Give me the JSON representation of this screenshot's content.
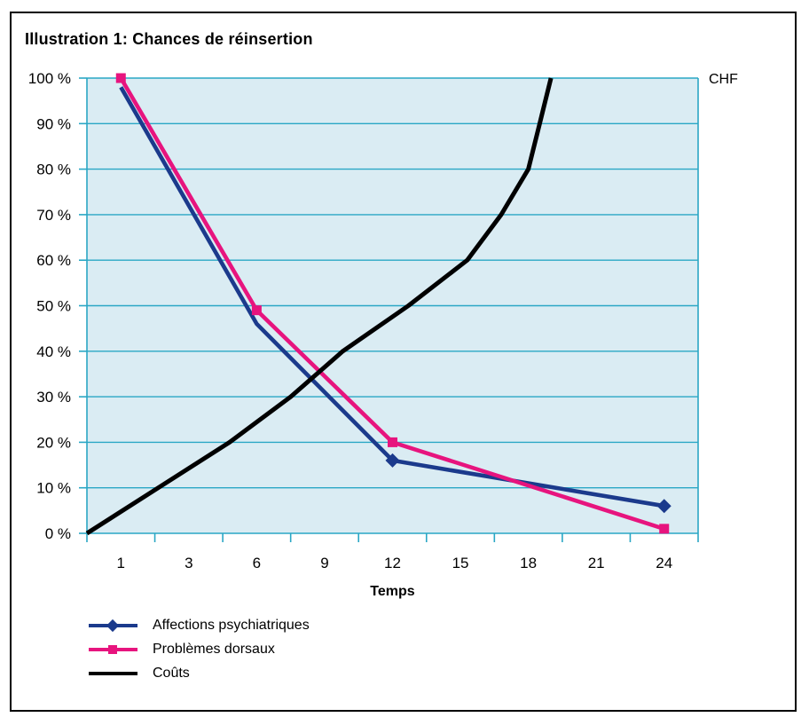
{
  "page": {
    "title": "Illustration 1: Chances de réinsertion"
  },
  "chart_data": {
    "type": "line",
    "title": "Illustration 1: Chances de réinsertion",
    "plot_background": "#DAECF3",
    "grid_color": "#2AA7C5",
    "grid": "horizontal-only",
    "x_axis": {
      "label": "Temps",
      "unit": "months",
      "categories": [
        "1",
        "3",
        "6",
        "9",
        "12",
        "15",
        "18",
        "21",
        "24"
      ]
    },
    "y_axis": {
      "range": [
        0,
        100
      ],
      "tick_step": 10,
      "tick_labels": [
        "0 %",
        "10 %",
        "20 %",
        "30 %",
        "40 %",
        "50 %",
        "60 %",
        "70 %",
        "80 %",
        "90 %",
        "100 %"
      ]
    },
    "right_axis_label": "CHF",
    "legend": {
      "position": "bottom-left"
    },
    "series": [
      {
        "name": "Affections psychiatriques",
        "color": "#1B3A8C",
        "marker": "diamond",
        "markers_at_months": [
          12,
          24
        ],
        "points": [
          {
            "month": 1,
            "pct": 98
          },
          {
            "month": 6,
            "pct": 46
          },
          {
            "month": 12,
            "pct": 16
          },
          {
            "month": 24,
            "pct": 6
          }
        ]
      },
      {
        "name": "Problèmes dorsaux",
        "color": "#E7147E",
        "marker": "square",
        "markers_at_months": [
          1,
          6,
          12,
          24
        ],
        "points": [
          {
            "month": 1,
            "pct": 100
          },
          {
            "month": 6,
            "pct": 49
          },
          {
            "month": 12,
            "pct": 20
          },
          {
            "month": 24,
            "pct": 1
          }
        ]
      },
      {
        "name": "Coûts",
        "color": "#000000",
        "marker": "none",
        "markers_at_months": [],
        "points": [
          {
            "month": 0,
            "pct": 0
          },
          {
            "month": 2.1,
            "pct": 10
          },
          {
            "month": 4.8,
            "pct": 20
          },
          {
            "month": 7.5,
            "pct": 30
          },
          {
            "month": 9.8,
            "pct": 40
          },
          {
            "month": 12.7,
            "pct": 50
          },
          {
            "month": 15.3,
            "pct": 60
          },
          {
            "month": 16.8,
            "pct": 70
          },
          {
            "month": 18.0,
            "pct": 80
          },
          {
            "month": 18.5,
            "pct": 90
          },
          {
            "month": 19.0,
            "pct": 100
          }
        ]
      }
    ]
  }
}
